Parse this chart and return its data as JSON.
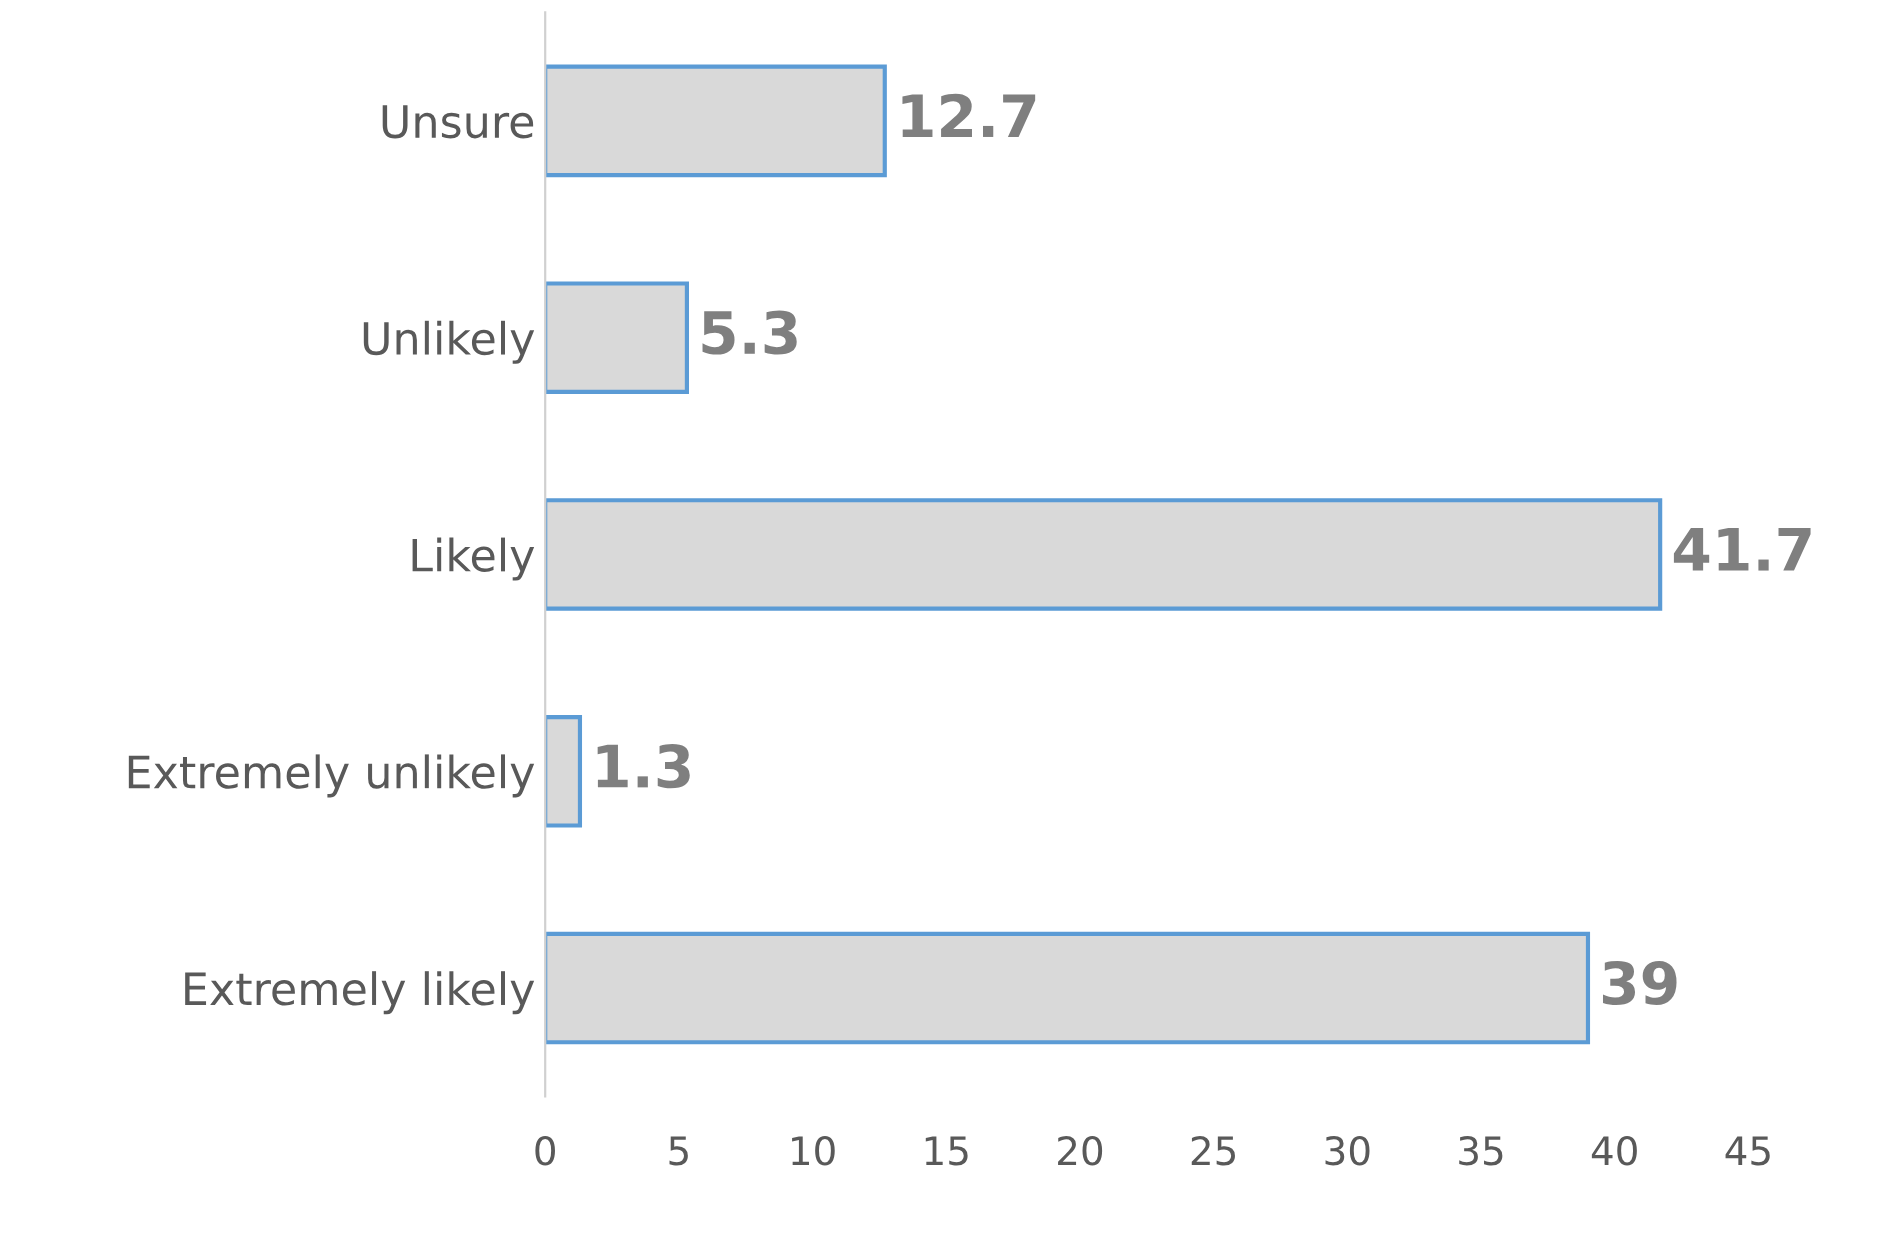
{
  "chart_data": {
    "type": "bar",
    "orientation": "horizontal",
    "categories": [
      "Unsure",
      "Unlikely",
      "Likely",
      "Extremely unlikely",
      "Extremely likely"
    ],
    "values": [
      12.7,
      5.3,
      41.7,
      1.3,
      39
    ],
    "color": "#d9d9d9",
    "xlim": [
      0,
      45
    ],
    "xticks": [
      0,
      5,
      10,
      15,
      20,
      25,
      30,
      35,
      40,
      45
    ],
    "grid": false,
    "data_labels": true
  }
}
